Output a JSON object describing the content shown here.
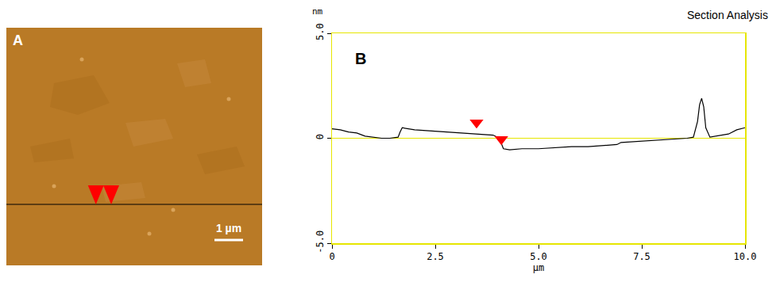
{
  "image_panel": {
    "label": "A",
    "scale_bar_label": "1 µm",
    "color": "#b97a26"
  },
  "chart_data": {
    "type": "line",
    "panel_label": "B",
    "title": "Section Analysis",
    "y_label": "nm",
    "x_label": "µm",
    "xlim": [
      0,
      10
    ],
    "ylim": [
      -5,
      5
    ],
    "xticks": [
      0,
      2.5,
      {
        "value": 5,
        "label": "5.0"
      },
      7.5,
      {
        "value": 10,
        "label": "10.0"
      }
    ],
    "yticks": [
      {
        "value": -5,
        "label": "-5.0"
      },
      0,
      {
        "value": 5,
        "label": "5.0"
      }
    ],
    "grid": false,
    "series": [
      {
        "type": "line",
        "color": "#000000",
        "x": [
          0,
          0.2,
          0.4,
          0.6,
          0.8,
          1.0,
          1.2,
          1.4,
          1.6,
          1.65,
          1.7,
          2.0,
          2.4,
          2.8,
          3.2,
          3.6,
          3.9,
          4.05,
          4.15,
          4.3,
          4.6,
          5.0,
          5.4,
          5.8,
          6.2,
          6.6,
          6.9,
          7.0,
          7.4,
          7.8,
          8.2,
          8.6,
          8.75,
          8.85,
          8.9,
          8.95,
          9.0,
          9.05,
          9.15,
          9.3,
          9.6,
          9.8,
          10.0
        ],
        "values": [
          0.45,
          0.4,
          0.3,
          0.25,
          0.1,
          0.05,
          0.0,
          0.0,
          0.05,
          0.3,
          0.5,
          0.4,
          0.35,
          0.3,
          0.25,
          0.2,
          0.15,
          0.0,
          -0.5,
          -0.55,
          -0.5,
          -0.5,
          -0.45,
          -0.4,
          -0.4,
          -0.35,
          -0.3,
          -0.2,
          -0.15,
          -0.1,
          -0.05,
          0.0,
          0.05,
          0.8,
          1.6,
          1.9,
          1.5,
          0.5,
          0.05,
          0.1,
          0.2,
          0.4,
          0.5
        ]
      },
      {
        "type": "scatter",
        "marker": "triangle-down",
        "color": "#ff0000",
        "x": [
          3.5,
          4.1
        ],
        "values": [
          0.75,
          -0.05
        ]
      }
    ]
  }
}
